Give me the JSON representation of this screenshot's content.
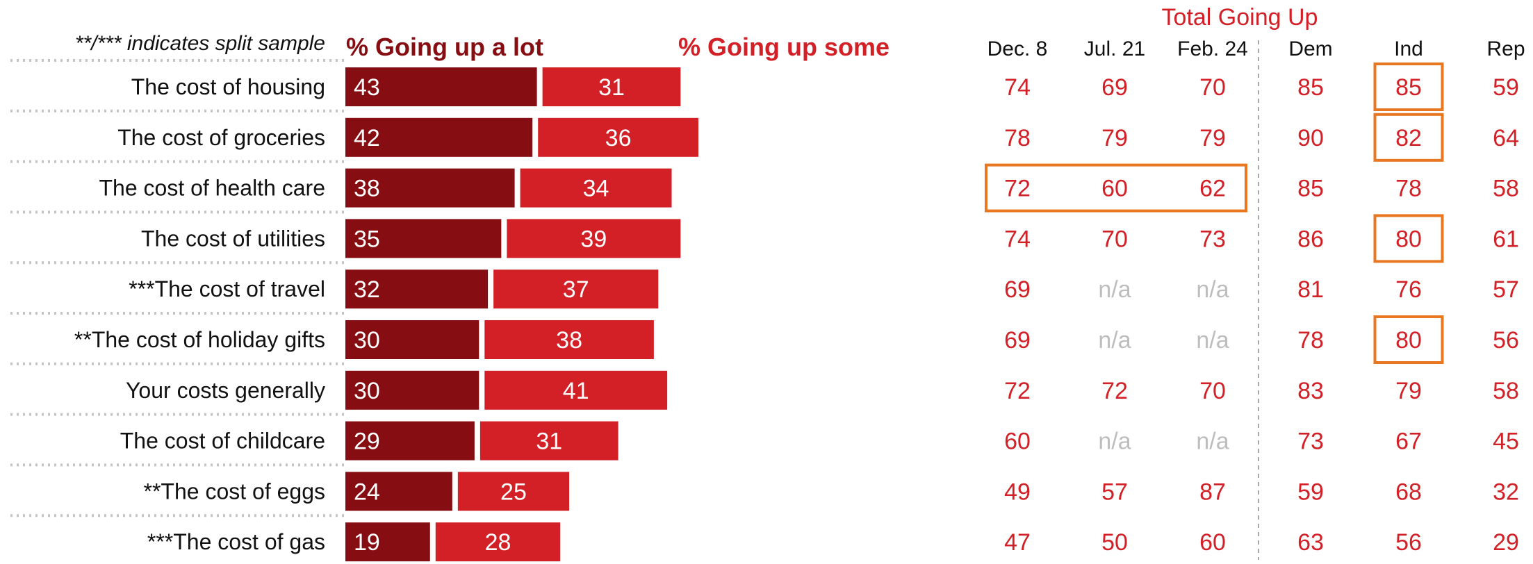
{
  "chart_data": {
    "type": "bar",
    "subtype": "stacked horizontal bar with table",
    "note": "**/*** indicates split sample",
    "categories": [
      "The cost of housing",
      "The cost of groceries",
      "The cost of health care",
      "The cost of utilities",
      "***The cost of travel",
      "**The cost of holiday gifts",
      "Your costs generally",
      "The cost of childcare",
      "**The cost of eggs",
      "***The cost of gas"
    ],
    "series": [
      {
        "name": "% Going up a lot",
        "color": "#860d12",
        "values": [
          43,
          42,
          38,
          35,
          32,
          30,
          30,
          29,
          24,
          19
        ]
      },
      {
        "name": "% Going up some",
        "color": "#d32027",
        "values": [
          31,
          36,
          34,
          39,
          37,
          38,
          41,
          31,
          25,
          28
        ]
      }
    ],
    "table_group_title": "Total Going Up",
    "table_columns": [
      "Dec. 8",
      "Jul. 21",
      "Feb. 24",
      "Dem",
      "Ind",
      "Rep"
    ],
    "table_rows": [
      [
        "74",
        "69",
        "70",
        "85",
        "85",
        "59"
      ],
      [
        "78",
        "79",
        "79",
        "90",
        "82",
        "64"
      ],
      [
        "72",
        "60",
        "62",
        "85",
        "78",
        "58"
      ],
      [
        "74",
        "70",
        "73",
        "86",
        "80",
        "61"
      ],
      [
        "69",
        "n/a",
        "n/a",
        "81",
        "76",
        "57"
      ],
      [
        "69",
        "n/a",
        "n/a",
        "78",
        "80",
        "56"
      ],
      [
        "72",
        "72",
        "70",
        "83",
        "79",
        "58"
      ],
      [
        "60",
        "n/a",
        "n/a",
        "73",
        "67",
        "45"
      ],
      [
        "49",
        "57",
        "87",
        "59",
        "68",
        "32"
      ],
      [
        "47",
        "50",
        "60",
        "63",
        "56",
        "29"
      ]
    ],
    "highlights": [
      {
        "row": 0,
        "col": 4
      },
      {
        "row": 1,
        "col": 4
      },
      {
        "row": 2,
        "col_start": 0,
        "col_end": 2
      },
      {
        "row": 3,
        "col": 4
      },
      {
        "row": 5,
        "col": 4
      }
    ],
    "colors": {
      "a_lot": "#860d12",
      "some": "#d32027",
      "table_text": "#d32027",
      "na_text": "#bdbdbd",
      "highlight": "#e87722"
    }
  }
}
